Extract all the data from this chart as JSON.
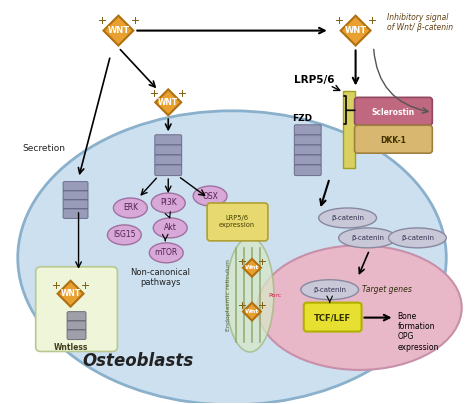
{
  "fig_width": 4.74,
  "fig_height": 4.04,
  "dpi": 100,
  "bg_color": "#ffffff",
  "cell_color": "#cce0f0",
  "cell_border_color": "#8ab0cc",
  "nucleus_color": "#e8b8c8",
  "nucleus_border_color": "#c890a8",
  "er_color": "#d8e8c8",
  "wntless_box_color": "#eef5d8",
  "wntless_box_border": "#b8c890",
  "wnt_diamond_color": "#e8a030",
  "wnt_diamond_border": "#b07010",
  "lrp56_bar_color": "#d8d060",
  "lrp56_bar_border": "#a0a020",
  "sclerostin_color": "#c06880",
  "sclerostin_border": "#904860",
  "dkk1_color": "#d8b870",
  "dkk1_border": "#a08040",
  "tcflef_color": "#e8e030",
  "tcflef_border": "#b0b000",
  "protein_circle_color": "#d8a8d8",
  "protein_circle_border": "#a070a0",
  "lrp56_expr_color": "#e8d870",
  "lrp56_expr_border": "#b0a030",
  "beta_catenin_color": "#c8c8d8",
  "beta_catenin_border": "#8888a0",
  "receptor_color": "#9090b0",
  "receptor_border": "#606080",
  "inhibitory_label": "Inhibitory signal\nof Wnt/ β-catenin",
  "secretion_label": "Secretion",
  "non_canonical_label": "Non-canonical\npathways",
  "osteoblasts_label": "Osteoblasts",
  "er_label": "Endoplasmic reticulum",
  "lrp56_label": "LRP5/6",
  "fzd_label": "FZD",
  "sclerostin_label": "Sclerostin",
  "dkk1_label": "DKK-1",
  "wnt_label": "WNT",
  "wntless_label": "Wntless",
  "osx_label": "OSX",
  "erk_label": "ERK",
  "pi3k_label": "PI3K",
  "akt_label": "Akt",
  "isg15_label": "ISG15",
  "mtor_label": "mTOR",
  "lrp56_expr_label": "LRP5/6\nexpression",
  "beta_catenin_label": "β-catenin",
  "target_genes_label": "Target genes",
  "tcflef_label": "TCF/LEF",
  "bone_label": "Bone\nformation\nOPG\nexpression",
  "porc_label": "Porc",
  "wnt_small_label": "Wnt"
}
